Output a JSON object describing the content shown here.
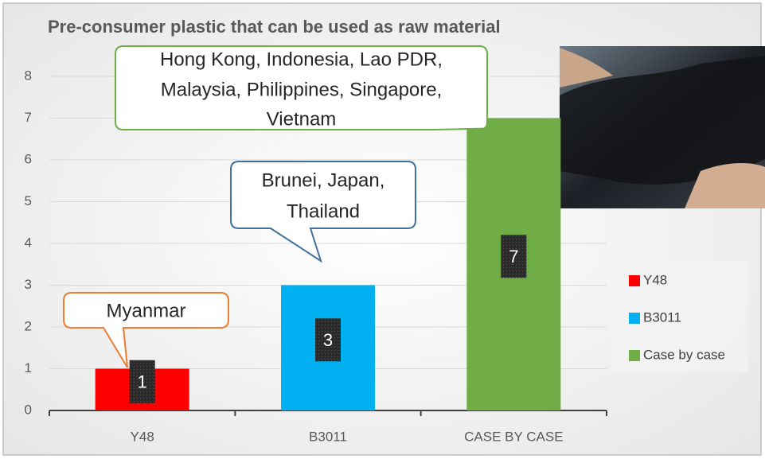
{
  "chart_data": {
    "type": "bar",
    "title": "Pre-consumer plastic that can be used as raw material",
    "categories": [
      "Y48",
      "B3011",
      "CASE BY CASE"
    ],
    "series": [
      {
        "name": "Y48",
        "color": "#ff0000",
        "values": [
          1,
          null,
          null
        ]
      },
      {
        "name": "B3011",
        "color": "#00b0f0",
        "values": [
          null,
          3,
          null
        ]
      },
      {
        "name": "Case by case",
        "color": "#70ad47",
        "values": [
          null,
          null,
          7
        ]
      }
    ],
    "ylim": [
      0,
      8
    ],
    "yticks": [
      0,
      1,
      2,
      3,
      4,
      5,
      6,
      7,
      8
    ],
    "grid": true,
    "legend": "right",
    "annotations": [
      {
        "lines": [
          "Myanmar"
        ],
        "color": "#ed7d31"
      },
      {
        "lines": [
          "Brunei, Japan,",
          "Thailand"
        ],
        "color": "#41719c"
      },
      {
        "lines": [
          "Hong Kong, Indonesia, Lao PDR,",
          "Malaysia, Philippines, Singapore,",
          "Vietnam"
        ],
        "color": "#70ad47"
      }
    ]
  }
}
